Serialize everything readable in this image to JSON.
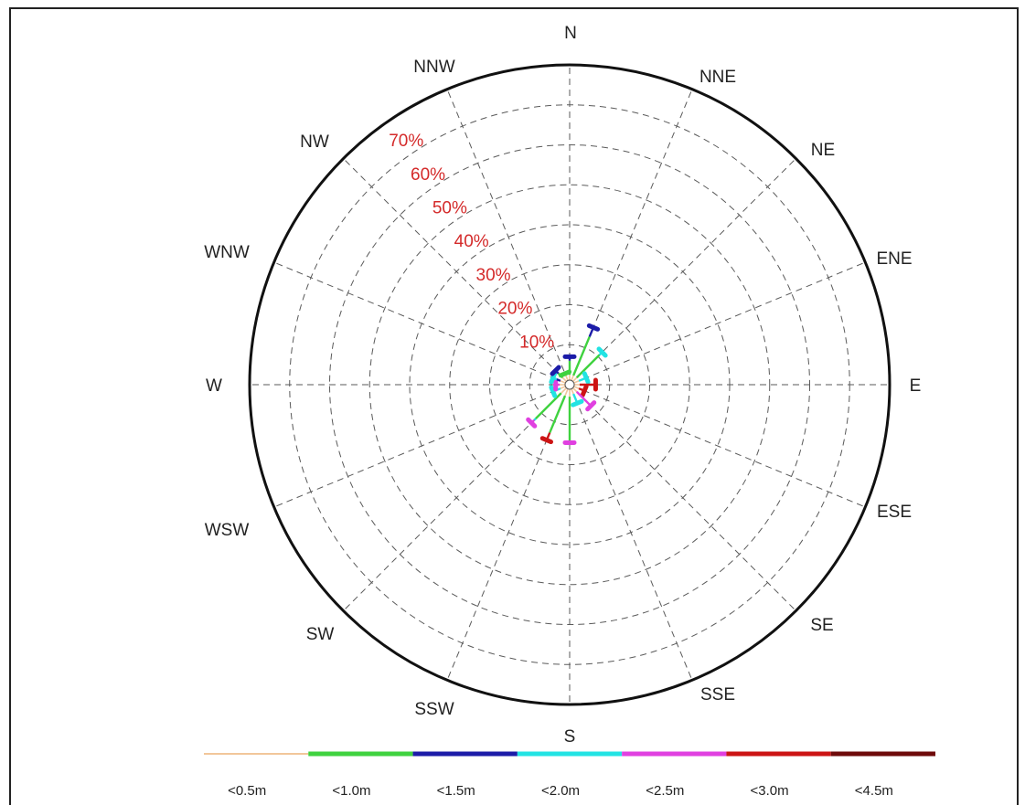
{
  "chart_data": {
    "type": "wind-rose",
    "title": "",
    "directions": [
      "N",
      "NNE",
      "NE",
      "ENE",
      "E",
      "ESE",
      "SE",
      "SSE",
      "S",
      "SSW",
      "SW",
      "WSW",
      "W",
      "WNW",
      "NW",
      "NNW"
    ],
    "radial_ticks": [
      "10%",
      "20%",
      "30%",
      "40%",
      "50%",
      "60%",
      "70%"
    ],
    "radial_tick_values": [
      10,
      20,
      30,
      40,
      50,
      60,
      70
    ],
    "radial_max": 80,
    "bins": [
      {
        "label": "<0.5m",
        "color": "#f2c69a"
      },
      {
        "label": "<1.0m",
        "color": "#3fd23f"
      },
      {
        "label": "<1.5m",
        "color": "#1c1ca8"
      },
      {
        "label": "<2.0m",
        "color": "#22e3e3"
      },
      {
        "label": "<2.5m",
        "color": "#e040e0"
      },
      {
        "label": "<3.0m",
        "color": "#cc1414"
      },
      {
        "label": "<4.5m",
        "color": "#6e0a0a"
      }
    ],
    "series_by_direction": [
      {
        "direction": "N",
        "cumulative": [
          2.5,
          6.0,
          7.0
        ]
      },
      {
        "direction": "NNE",
        "cumulative": [
          2.5,
          13.0,
          15.5
        ]
      },
      {
        "direction": "NE",
        "cumulative": [
          2.5,
          10.5,
          10.5,
          11.5
        ]
      },
      {
        "direction": "ENE",
        "cumulative": [
          2.5,
          2.5,
          2.5,
          4.5
        ]
      },
      {
        "direction": "E",
        "cumulative": [
          2.5,
          2.5,
          2.5,
          2.5,
          2.5,
          6.5
        ]
      },
      {
        "direction": "ESE",
        "cumulative": [
          2.5,
          2.5,
          2.5,
          2.5,
          2.5,
          4.0
        ]
      },
      {
        "direction": "SE",
        "cumulative": [
          2.5,
          2.5,
          2.5,
          2.5,
          7.5
        ]
      },
      {
        "direction": "SSE",
        "cumulative": [
          2.5,
          2.5,
          2.5,
          5.0
        ]
      },
      {
        "direction": "S",
        "cumulative": [
          3.0,
          14.5,
          14.5,
          14.5,
          14.5
        ]
      },
      {
        "direction": "SSW",
        "cumulative": [
          3.0,
          13.0,
          13.0,
          13.0,
          13.0,
          15.0
        ]
      },
      {
        "direction": "SW",
        "cumulative": [
          3.0,
          12.0,
          12.0,
          12.5,
          13.5
        ]
      },
      {
        "direction": "WSW",
        "cumulative": [
          2.5,
          2.5,
          2.5,
          4.5
        ]
      },
      {
        "direction": "W",
        "cumulative": [
          2.5,
          2.5,
          2.5,
          2.5,
          3.5
        ]
      },
      {
        "direction": "WNW",
        "cumulative": [
          2.5,
          2.5,
          3.5,
          4.5
        ]
      },
      {
        "direction": "NW",
        "cumulative": [
          2.5,
          4.0,
          5.0
        ]
      },
      {
        "direction": "NNW",
        "cumulative": [
          2.5,
          3.0
        ]
      }
    ],
    "grid": true,
    "legend_position": "bottom"
  }
}
